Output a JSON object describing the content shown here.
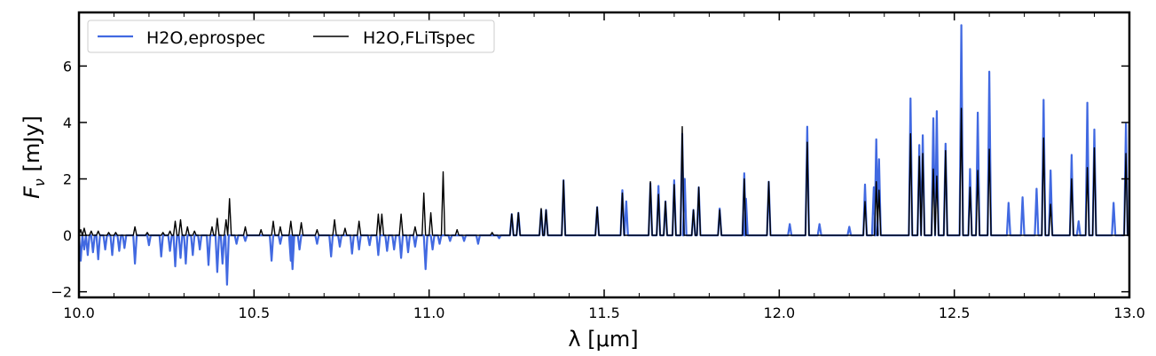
{
  "chart_data": {
    "type": "line",
    "xlabel": "λ [μm]",
    "ylabel": "F_ν [mJy]",
    "xlim": [
      10.0,
      13.0
    ],
    "ylim": [
      -2.2,
      7.9
    ],
    "xticks": [
      10.0,
      10.5,
      11.0,
      11.5,
      12.0,
      12.5,
      13.0
    ],
    "xtick_labels": [
      "10.0",
      "10.5",
      "11.0",
      "11.5",
      "12.0",
      "12.5",
      "13.0"
    ],
    "yticks": [
      -2,
      0,
      2,
      4,
      6
    ],
    "ytick_labels": [
      "−2",
      "0",
      "2",
      "4",
      "6"
    ],
    "grid": false,
    "legend_position": "top-left",
    "series": [
      {
        "name": "H2O,eprospec",
        "color": "#4169E1",
        "points": [
          [
            10.005,
            -0.9
          ],
          [
            10.015,
            -0.5
          ],
          [
            10.025,
            -0.7
          ],
          [
            10.04,
            -0.6
          ],
          [
            10.055,
            -0.85
          ],
          [
            10.075,
            -0.5
          ],
          [
            10.095,
            -0.7
          ],
          [
            10.115,
            -0.55
          ],
          [
            10.13,
            -0.45
          ],
          [
            10.16,
            -1.0
          ],
          [
            10.2,
            -0.35
          ],
          [
            10.235,
            -0.75
          ],
          [
            10.26,
            -0.55
          ],
          [
            10.275,
            -1.1
          ],
          [
            10.29,
            -0.8
          ],
          [
            10.305,
            -1.0
          ],
          [
            10.325,
            -0.7
          ],
          [
            10.345,
            -0.5
          ],
          [
            10.37,
            -1.05
          ],
          [
            10.395,
            -1.3
          ],
          [
            10.41,
            -1.0
          ],
          [
            10.423,
            -1.75
          ],
          [
            10.45,
            -0.3
          ],
          [
            10.475,
            -0.2
          ],
          [
            10.55,
            -0.9
          ],
          [
            10.575,
            -0.3
          ],
          [
            10.605,
            -0.9
          ],
          [
            10.61,
            -1.2
          ],
          [
            10.63,
            -0.5
          ],
          [
            10.68,
            -0.3
          ],
          [
            10.72,
            -0.75
          ],
          [
            10.745,
            -0.4
          ],
          [
            10.78,
            -0.65
          ],
          [
            10.8,
            -0.5
          ],
          [
            10.83,
            -0.35
          ],
          [
            10.855,
            -0.7
          ],
          [
            10.88,
            -0.55
          ],
          [
            10.9,
            -0.5
          ],
          [
            10.92,
            -0.8
          ],
          [
            10.94,
            -0.6
          ],
          [
            10.96,
            -0.4
          ],
          [
            10.99,
            -1.2
          ],
          [
            11.01,
            -0.5
          ],
          [
            11.03,
            -0.3
          ],
          [
            11.06,
            -0.2
          ],
          [
            11.1,
            -0.2
          ],
          [
            11.14,
            -0.3
          ],
          [
            11.2,
            -0.1
          ],
          [
            11.236,
            0.75
          ],
          [
            11.255,
            0.8
          ],
          [
            11.32,
            0.9
          ],
          [
            11.334,
            0.9
          ],
          [
            11.384,
            1.95
          ],
          [
            11.48,
            1.0
          ],
          [
            11.552,
            1.6
          ],
          [
            11.563,
            1.2
          ],
          [
            11.632,
            1.85
          ],
          [
            11.655,
            1.75
          ],
          [
            11.675,
            1.2
          ],
          [
            11.7,
            1.95
          ],
          [
            11.723,
            3.6
          ],
          [
            11.73,
            2.0
          ],
          [
            11.755,
            0.9
          ],
          [
            11.77,
            1.7
          ],
          [
            11.83,
            0.95
          ],
          [
            11.9,
            2.2
          ],
          [
            11.905,
            1.3
          ],
          [
            11.97,
            1.9
          ],
          [
            12.03,
            0.4
          ],
          [
            12.08,
            3.85
          ],
          [
            12.115,
            0.4
          ],
          [
            12.2,
            0.3
          ],
          [
            12.245,
            1.8
          ],
          [
            12.27,
            1.7
          ],
          [
            12.277,
            3.4
          ],
          [
            12.285,
            2.7
          ],
          [
            12.375,
            4.85
          ],
          [
            12.4,
            3.2
          ],
          [
            12.41,
            3.55
          ],
          [
            12.44,
            4.15
          ],
          [
            12.45,
            4.4
          ],
          [
            12.475,
            3.25
          ],
          [
            12.52,
            7.45
          ],
          [
            12.545,
            2.35
          ],
          [
            12.567,
            4.35
          ],
          [
            12.6,
            5.8
          ],
          [
            12.655,
            1.15
          ],
          [
            12.695,
            1.35
          ],
          [
            12.735,
            1.65
          ],
          [
            12.755,
            4.8
          ],
          [
            12.775,
            2.3
          ],
          [
            12.835,
            2.85
          ],
          [
            12.855,
            0.5
          ],
          [
            12.88,
            4.7
          ],
          [
            12.9,
            3.75
          ],
          [
            12.955,
            1.15
          ],
          [
            12.99,
            3.95
          ]
        ]
      },
      {
        "name": "H2O,FLiTspec",
        "color": "#000000",
        "points": [
          [
            10.005,
            0.2
          ],
          [
            10.015,
            0.25
          ],
          [
            10.035,
            0.15
          ],
          [
            10.055,
            0.15
          ],
          [
            10.085,
            0.1
          ],
          [
            10.105,
            0.1
          ],
          [
            10.16,
            0.3
          ],
          [
            10.195,
            0.1
          ],
          [
            10.24,
            0.1
          ],
          [
            10.26,
            0.15
          ],
          [
            10.275,
            0.5
          ],
          [
            10.29,
            0.55
          ],
          [
            10.31,
            0.3
          ],
          [
            10.33,
            0.15
          ],
          [
            10.38,
            0.3
          ],
          [
            10.395,
            0.6
          ],
          [
            10.42,
            0.55
          ],
          [
            10.43,
            1.3
          ],
          [
            10.475,
            0.3
          ],
          [
            10.52,
            0.2
          ],
          [
            10.555,
            0.5
          ],
          [
            10.575,
            0.3
          ],
          [
            10.605,
            0.5
          ],
          [
            10.635,
            0.45
          ],
          [
            10.68,
            0.2
          ],
          [
            10.73,
            0.55
          ],
          [
            10.76,
            0.25
          ],
          [
            10.8,
            0.5
          ],
          [
            10.855,
            0.75
          ],
          [
            10.865,
            0.75
          ],
          [
            10.92,
            0.75
          ],
          [
            10.96,
            0.3
          ],
          [
            10.985,
            1.5
          ],
          [
            11.005,
            0.8
          ],
          [
            11.04,
            2.25
          ],
          [
            11.08,
            0.2
          ],
          [
            11.18,
            0.1
          ],
          [
            11.236,
            0.75
          ],
          [
            11.255,
            0.8
          ],
          [
            11.32,
            0.95
          ],
          [
            11.334,
            0.9
          ],
          [
            11.384,
            1.95
          ],
          [
            11.48,
            1.0
          ],
          [
            11.552,
            1.5
          ],
          [
            11.632,
            1.9
          ],
          [
            11.655,
            1.45
          ],
          [
            11.675,
            1.2
          ],
          [
            11.7,
            1.8
          ],
          [
            11.723,
            3.85
          ],
          [
            11.755,
            0.9
          ],
          [
            11.77,
            1.7
          ],
          [
            11.83,
            0.9
          ],
          [
            11.9,
            2.0
          ],
          [
            11.97,
            1.9
          ],
          [
            12.08,
            3.3
          ],
          [
            12.245,
            1.2
          ],
          [
            12.277,
            1.9
          ],
          [
            12.285,
            1.6
          ],
          [
            12.375,
            3.6
          ],
          [
            12.4,
            2.8
          ],
          [
            12.41,
            2.9
          ],
          [
            12.44,
            2.35
          ],
          [
            12.45,
            2.1
          ],
          [
            12.475,
            3.0
          ],
          [
            12.52,
            4.5
          ],
          [
            12.545,
            1.7
          ],
          [
            12.567,
            2.3
          ],
          [
            12.6,
            3.05
          ],
          [
            12.755,
            3.45
          ],
          [
            12.775,
            1.1
          ],
          [
            12.835,
            2.0
          ],
          [
            12.88,
            2.4
          ],
          [
            12.9,
            3.1
          ],
          [
            12.99,
            2.9
          ]
        ]
      }
    ]
  }
}
